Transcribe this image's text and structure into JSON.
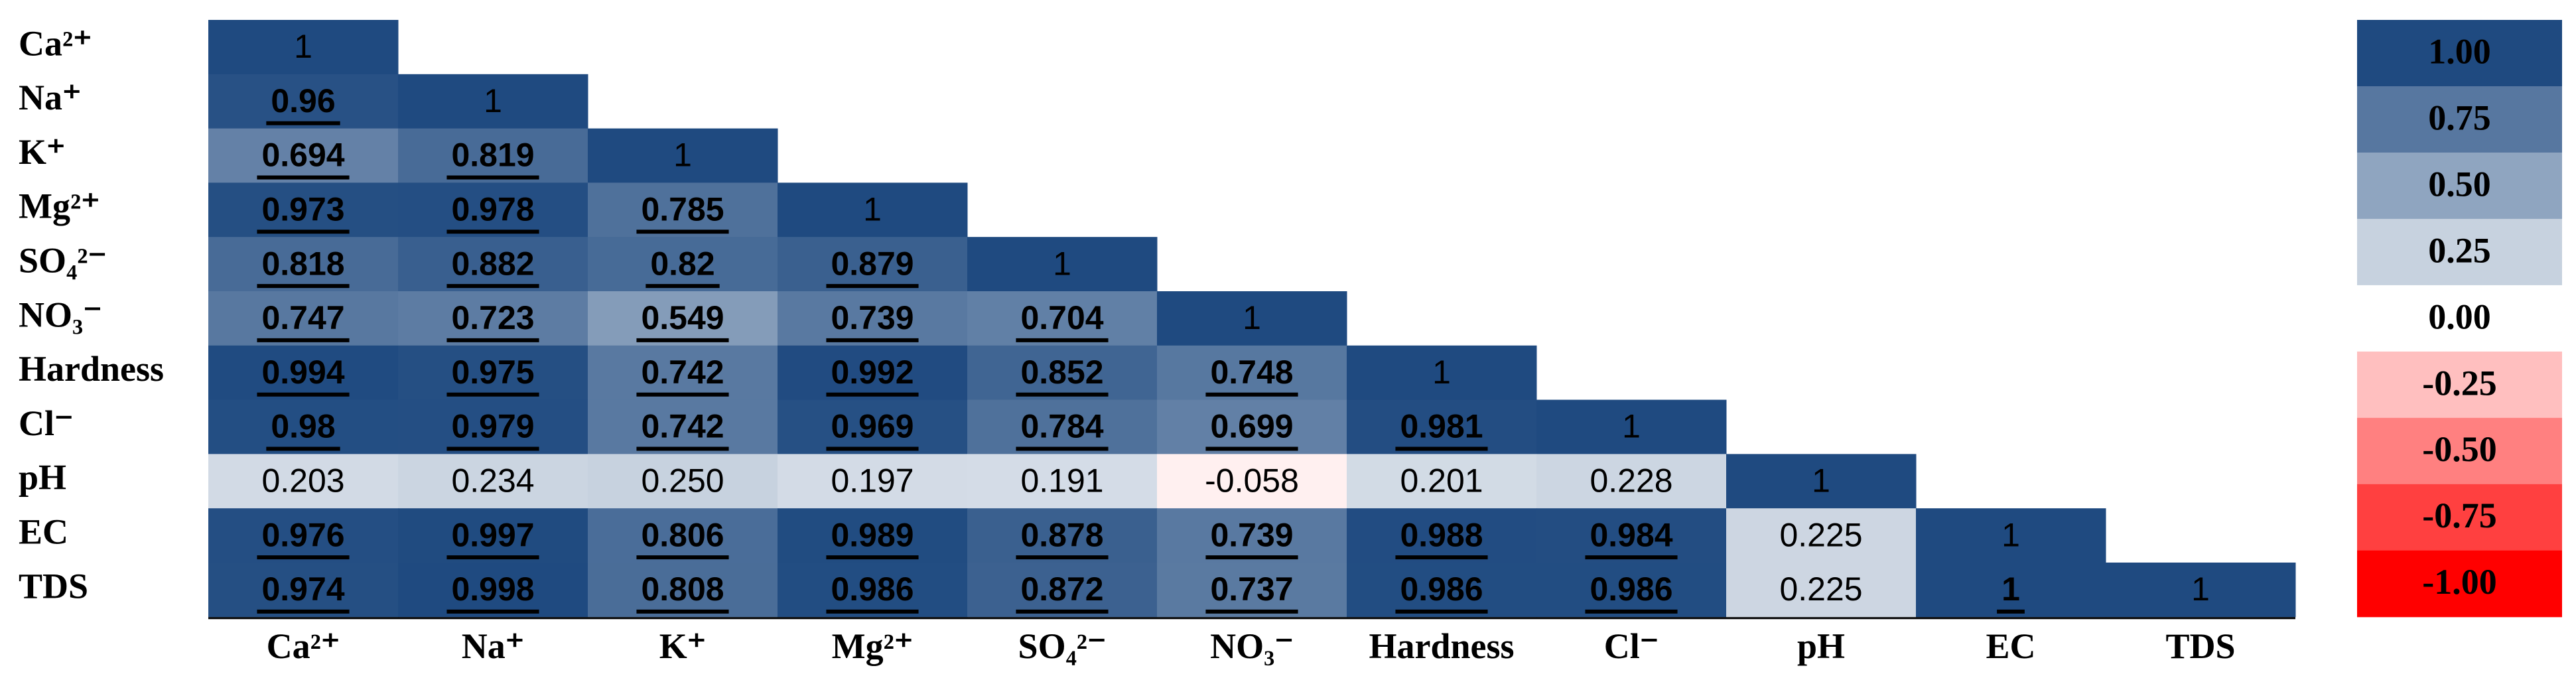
{
  "chart_data": {
    "type": "heatmap",
    "categories": [
      "Ca²⁺",
      "Na⁺",
      "K⁺",
      "Mg²⁺",
      "SO₄²⁻",
      "NO₃⁻",
      "Hardness",
      "Cl⁻",
      "pH",
      "EC",
      "TDS"
    ],
    "values": [
      [
        1
      ],
      [
        0.96,
        1
      ],
      [
        0.694,
        0.819,
        1
      ],
      [
        0.973,
        0.978,
        0.785,
        1
      ],
      [
        0.818,
        0.882,
        0.82,
        0.879,
        1
      ],
      [
        0.747,
        0.723,
        0.549,
        0.739,
        0.704,
        1
      ],
      [
        0.994,
        0.975,
        0.742,
        0.992,
        0.852,
        0.748,
        1
      ],
      [
        0.98,
        0.979,
        0.742,
        0.969,
        0.784,
        0.699,
        0.981,
        1
      ],
      [
        0.203,
        0.234,
        0.25,
        0.197,
        0.191,
        -0.058,
        0.201,
        0.228,
        1
      ],
      [
        0.976,
        0.997,
        0.806,
        0.989,
        0.878,
        0.739,
        0.988,
        0.984,
        0.225,
        1
      ],
      [
        0.974,
        0.998,
        0.808,
        0.986,
        0.872,
        0.737,
        0.986,
        0.986,
        0.225,
        1,
        1
      ]
    ],
    "value_labels": [
      [
        "1"
      ],
      [
        "0.96",
        "1"
      ],
      [
        "0.694",
        "0.819",
        "1"
      ],
      [
        "0.973",
        "0.978",
        "0.785",
        "1"
      ],
      [
        "0.818",
        "0.882",
        "0.82",
        "0.879",
        "1"
      ],
      [
        "0.747",
        "0.723",
        "0.549",
        "0.739",
        "0.704",
        "1"
      ],
      [
        "0.994",
        "0.975",
        "0.742",
        "0.992",
        "0.852",
        "0.748",
        "1"
      ],
      [
        "0.98",
        "0.979",
        "0.742",
        "0.969",
        "0.784",
        "0.699",
        "0.981",
        "1"
      ],
      [
        "0.203",
        "0.234",
        "0.250",
        "0.197",
        "0.191",
        "-0.058",
        "0.201",
        "0.228",
        "1"
      ],
      [
        "0.976",
        "0.997",
        "0.806",
        "0.989",
        "0.878",
        "0.739",
        "0.988",
        "0.984",
        "0.225",
        "1"
      ],
      [
        "0.974",
        "0.998",
        "0.808",
        "0.986",
        "0.872",
        "0.737",
        "0.986",
        "0.986",
        "0.225",
        "1",
        "1"
      ]
    ],
    "significant": [
      [
        false
      ],
      [
        true,
        false
      ],
      [
        true,
        true,
        false
      ],
      [
        true,
        true,
        true,
        false
      ],
      [
        true,
        true,
        true,
        true,
        false
      ],
      [
        true,
        true,
        true,
        true,
        true,
        false
      ],
      [
        true,
        true,
        true,
        true,
        true,
        true,
        false
      ],
      [
        true,
        true,
        true,
        true,
        true,
        true,
        true,
        false
      ],
      [
        false,
        false,
        false,
        false,
        false,
        false,
        false,
        false,
        false
      ],
      [
        true,
        true,
        true,
        true,
        true,
        true,
        true,
        true,
        false,
        false
      ],
      [
        true,
        true,
        true,
        true,
        true,
        true,
        true,
        true,
        false,
        true,
        false
      ]
    ],
    "colormap": [
      "#ff0000",
      "#ffffff",
      "#1f4a80"
    ],
    "colorbar": [
      {
        "value": 1,
        "label": "1.00"
      },
      {
        "value": 0.75,
        "label": "0.75"
      },
      {
        "value": 0.5,
        "label": "0.50"
      },
      {
        "value": 0.25,
        "label": "0.25"
      },
      {
        "value": 0,
        "label": "0.00"
      },
      {
        "value": -0.25,
        "label": "-0.25"
      },
      {
        "value": -0.5,
        "label": "-0.50"
      },
      {
        "value": -0.75,
        "label": "-0.75"
      },
      {
        "value": -1,
        "label": "-1.00"
      }
    ]
  }
}
